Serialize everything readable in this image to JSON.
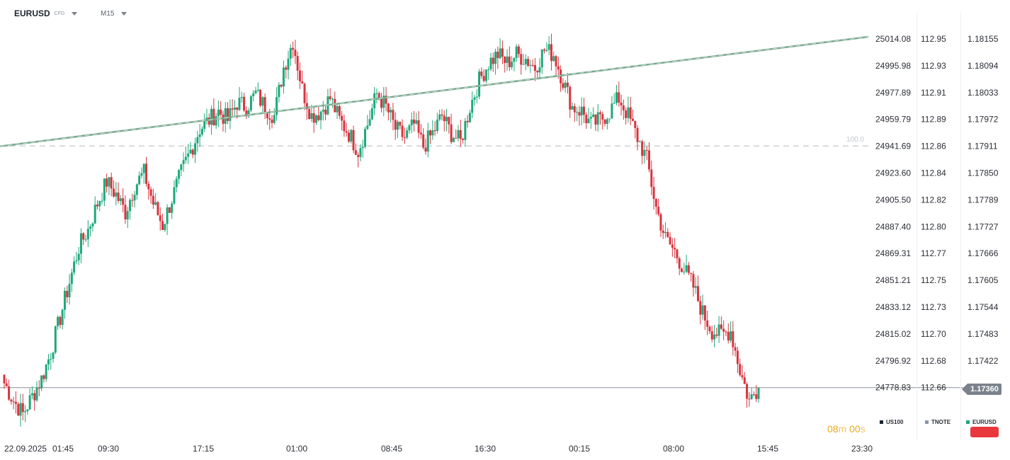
{
  "toolbar": {
    "symbol": "EURUSD",
    "symbol_tag": "CFD",
    "timeframe": "M15"
  },
  "timer": {
    "minutes": "08",
    "minutes_unit": "m",
    "seconds": "00",
    "seconds_unit": "s"
  },
  "legend": [
    {
      "label": "US100",
      "color": "#1d2430"
    },
    {
      "label": "TNOTE",
      "color": "#8c98a8"
    },
    {
      "label": "EURUSD",
      "color": "#1ea87a"
    }
  ],
  "current_price": "1.17360",
  "colors": {
    "up": "#1ea87a",
    "down": "#d8343f",
    "trendline": "#7aa88f",
    "level_line": "#d7dadf",
    "current_line": "#8b9097",
    "accent": "#f0a81f"
  },
  "chart_data": {
    "type": "candlestick",
    "instrument": "EURUSD",
    "timeframe": "M15",
    "x_tick_labels": [
      "22.09.2025",
      "01:45",
      "09:30",
      "17:15",
      "01:00",
      "08:45",
      "16:30",
      "00:15",
      "08:00",
      "15:45",
      "23:30"
    ],
    "price_axes": [
      {
        "name": "US100",
        "ticks": [
          "25014.08",
          "24995.98",
          "24977.89",
          "24959.79",
          "24941.69",
          "24923.60",
          "24905.50",
          "24887.40",
          "24869.31",
          "24851.21",
          "24833.12",
          "24815.02",
          "24796.92",
          "24778.83"
        ]
      },
      {
        "name": "TNOTE",
        "ticks": [
          "112.95",
          "112.93",
          "112.91",
          "112.89",
          "112.86",
          "112.84",
          "112.82",
          "112.80",
          "112.77",
          "112.75",
          "112.73",
          "112.70",
          "112.68",
          "112.66"
        ]
      },
      {
        "name": "EURUSD",
        "ticks": [
          "1.18155",
          "1.18094",
          "1.18033",
          "1.17972",
          "1.17911",
          "1.17850",
          "1.17789",
          "1.17727",
          "1.17666",
          "1.17605",
          "1.17544",
          "1.17483",
          "1.17422",
          "1.17360"
        ]
      }
    ],
    "ylim": [
      1.1729,
      1.182
    ],
    "fib_level": {
      "label": "100.0",
      "price": 1.17911
    },
    "current_price": 1.1736,
    "trendline": {
      "start": 1.17911,
      "end": 1.18155
    },
    "close_path": [
      1.1737,
      1.1733,
      1.173,
      1.1734,
      1.1738,
      1.1744,
      1.1752,
      1.176,
      1.1768,
      1.1772,
      1.1778,
      1.1783,
      1.178,
      1.1776,
      1.1782,
      1.1785,
      1.1778,
      1.1773,
      1.1779,
      1.1785,
      1.179,
      1.1795,
      1.1797,
      1.1799,
      1.1797,
      1.1801,
      1.18,
      1.1803,
      1.18,
      1.1798,
      1.1809,
      1.1815,
      1.1804,
      1.1798,
      1.1799,
      1.1802,
      1.1797,
      1.1794,
      1.179,
      1.1796,
      1.1803,
      1.18,
      1.1795,
      1.1793,
      1.1796,
      1.1791,
      1.1794,
      1.1798,
      1.1794,
      1.1792,
      1.18,
      1.1806,
      1.181,
      1.1812,
      1.181,
      1.1812,
      1.1811,
      1.1809,
      1.1813,
      1.1812,
      1.1806,
      1.18,
      1.1799,
      1.1796,
      1.1797,
      1.1799,
      1.1802,
      1.1798,
      1.1793,
      1.1788,
      1.1777,
      1.177,
      1.1767,
      1.1763,
      1.1759,
      1.1753,
      1.1749,
      1.1748,
      1.1749,
      1.174,
      1.1733,
      1.1736
    ]
  }
}
